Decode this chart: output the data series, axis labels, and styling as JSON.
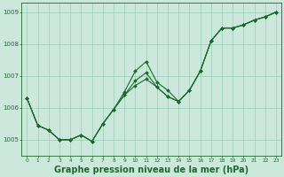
{
  "background_color": "#cce8dc",
  "grid_color": "#99ccb8",
  "line_color": "#1a6b2a",
  "marker_color": "#1a6b2a",
  "xlabel": "Graphe pression niveau de la mer (hPa)",
  "xlabel_fontsize": 7,
  "xlim": [
    -0.5,
    23.5
  ],
  "ylim": [
    1004.5,
    1009.3
  ],
  "yticks": [
    1005,
    1006,
    1007,
    1008,
    1009
  ],
  "xticks": [
    0,
    1,
    2,
    3,
    4,
    5,
    6,
    7,
    8,
    9,
    10,
    11,
    12,
    13,
    14,
    15,
    16,
    17,
    18,
    19,
    20,
    21,
    22,
    23
  ],
  "series1": [
    1006.3,
    1005.45,
    1005.3,
    1005.0,
    1005.0,
    1005.15,
    1004.95,
    1005.5,
    1005.95,
    1006.5,
    1007.15,
    1007.45,
    1006.8,
    1006.55,
    1006.2,
    1006.55,
    1007.15,
    1008.1,
    1008.5,
    1008.5,
    1008.6,
    1008.75,
    1008.85,
    1009.0
  ],
  "series2": [
    1006.3,
    1005.45,
    1005.3,
    1005.0,
    1005.0,
    1005.15,
    1004.95,
    1005.5,
    1005.95,
    1006.4,
    1006.85,
    1007.1,
    1006.65,
    1006.35,
    1006.2,
    1006.55,
    1007.15,
    1008.1,
    1008.5,
    1008.5,
    1008.6,
    1008.75,
    1008.85,
    1009.0
  ],
  "series3": [
    1006.3,
    1005.45,
    1005.3,
    1005.0,
    1005.0,
    1005.15,
    1004.95,
    1005.5,
    1005.95,
    1006.4,
    1006.7,
    1006.9,
    1006.65,
    1006.35,
    1006.2,
    1006.55,
    1007.15,
    1008.1,
    1008.5,
    1008.5,
    1008.6,
    1008.75,
    1008.85,
    1009.0
  ]
}
